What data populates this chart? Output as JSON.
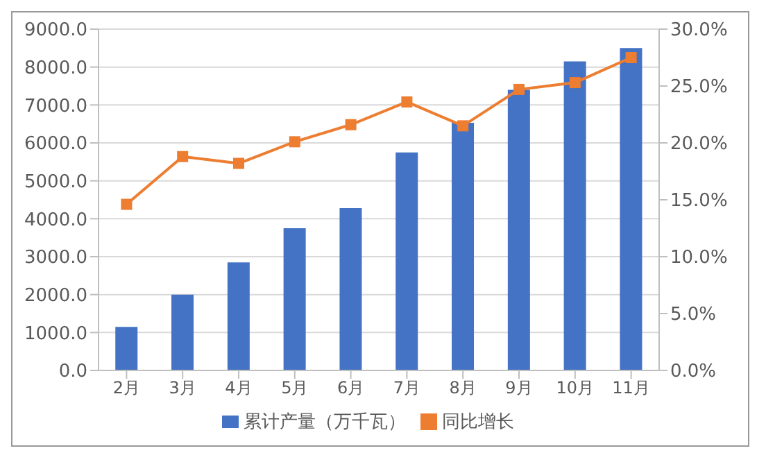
{
  "chart_data": {
    "type": "bar",
    "categories": [
      "2月",
      "3月",
      "4月",
      "5月",
      "6月",
      "7月",
      "8月",
      "9月",
      "10月",
      "11月"
    ],
    "series": [
      {
        "name": "累计产量（万千瓦）",
        "color": "#4472c4",
        "values": [
          1150,
          2000,
          2850,
          3750,
          4280,
          5750,
          6530,
          7400,
          8150,
          8500
        ]
      },
      {
        "name": "同比增长",
        "type": "line",
        "axis": "y2",
        "color": "#ed7d31",
        "marker": "square",
        "values": [
          14.6,
          18.8,
          18.2,
          20.1,
          21.6,
          23.6,
          21.5,
          24.7,
          25.3,
          27.5
        ]
      }
    ],
    "ylim": [
      0,
      9000
    ],
    "yticks": [
      {
        "value": 0,
        "label": "0.0"
      },
      {
        "value": 1000,
        "label": "1000.0"
      },
      {
        "value": 2000,
        "label": "2000.0"
      },
      {
        "value": 3000,
        "label": "3000.0"
      },
      {
        "value": 4000,
        "label": "4000.0"
      },
      {
        "value": 5000,
        "label": "5000.0"
      },
      {
        "value": 6000,
        "label": "6000.0"
      },
      {
        "value": 7000,
        "label": "7000.0"
      },
      {
        "value": 8000,
        "label": "8000.0"
      },
      {
        "value": 9000,
        "label": "9000.0"
      }
    ],
    "y2lim": [
      0,
      30
    ],
    "y2ticks": [
      {
        "value": 0,
        "label": "0.0%"
      },
      {
        "value": 5,
        "label": "5.0%"
      },
      {
        "value": 10,
        "label": "10.0%"
      },
      {
        "value": 15,
        "label": "15.0%"
      },
      {
        "value": 20,
        "label": "20.0%"
      },
      {
        "value": 25,
        "label": "25.0%"
      },
      {
        "value": 30,
        "label": "30.0%"
      }
    ],
    "grid": "y",
    "legend": "bottom"
  }
}
